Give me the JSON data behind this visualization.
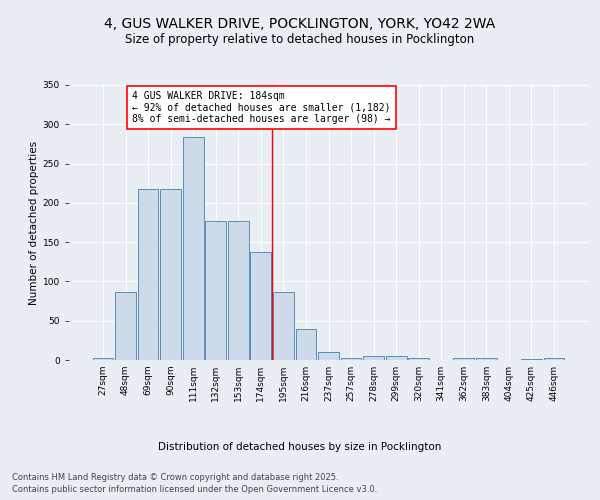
{
  "title": "4, GUS WALKER DRIVE, POCKLINGTON, YORK, YO42 2WA",
  "subtitle": "Size of property relative to detached houses in Pocklington",
  "xlabel": "Distribution of detached houses by size in Pocklington",
  "ylabel": "Number of detached properties",
  "bar_labels": [
    "27sqm",
    "48sqm",
    "69sqm",
    "90sqm",
    "111sqm",
    "132sqm",
    "153sqm",
    "174sqm",
    "195sqm",
    "216sqm",
    "237sqm",
    "257sqm",
    "278sqm",
    "299sqm",
    "320sqm",
    "341sqm",
    "362sqm",
    "383sqm",
    "404sqm",
    "425sqm",
    "446sqm"
  ],
  "bar_values": [
    3,
    86,
    217,
    217,
    284,
    177,
    177,
    137,
    86,
    40,
    10,
    3,
    5,
    5,
    3,
    0,
    3,
    3,
    0,
    1,
    2
  ],
  "bar_color": "#ccdaea",
  "bar_edge_color": "#5b8db8",
  "annotation_title": "4 GUS WALKER DRIVE: 184sqm",
  "annotation_line1": "← 92% of detached houses are smaller (1,182)",
  "annotation_line2": "8% of semi-detached houses are larger (98) →",
  "ylim": [
    0,
    350
  ],
  "yticks": [
    0,
    50,
    100,
    150,
    200,
    250,
    300,
    350
  ],
  "footer_line1": "Contains HM Land Registry data © Crown copyright and database right 2025.",
  "footer_line2": "Contains public sector information licensed under the Open Government Licence v3.0.",
  "background_color": "#e8eef4",
  "plot_bg_color": "#e8eef4",
  "grid_color": "#ffffff",
  "title_fontsize": 10,
  "subtitle_fontsize": 8.5,
  "axis_label_fontsize": 7.5,
  "tick_fontsize": 6.5,
  "annotation_fontsize": 7,
  "footer_fontsize": 6
}
